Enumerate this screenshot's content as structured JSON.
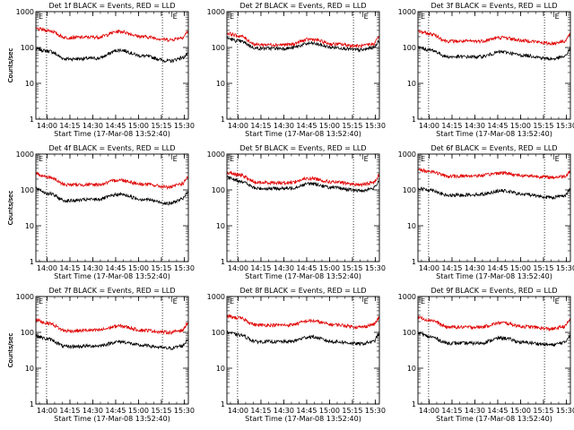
{
  "colors": {
    "events": "#000000",
    "lld": "#e00000",
    "axis": "#000000",
    "background": "#ffffff"
  },
  "chart_data": [
    {
      "type": "line",
      "title": "Det 1f BLACK = Events, RED = LLD",
      "xlabel": "Start Time (17-Mar-08 13:52:40)",
      "ylabel": "Counts/sec",
      "yscale": "log",
      "ylim": [
        1,
        1000
      ],
      "xlim_minutes": [
        0,
        100
      ],
      "xticks": [
        "14:00",
        "14:15",
        "14:30",
        "14:45",
        "15:00",
        "15:15",
        "15:30"
      ],
      "yticks": [
        "1",
        "10",
        "100",
        "1000"
      ],
      "markers": [
        {
          "label": "E",
          "minute": 0
        },
        {
          "label": "E",
          "minute": 88
        }
      ],
      "dotted_x_minutes": [
        7,
        83
      ],
      "series": [
        {
          "name": "Events",
          "color": "#000000",
          "keypoints": [
            [
              0,
              90
            ],
            [
              8,
              80
            ],
            [
              20,
              48
            ],
            [
              40,
              50
            ],
            [
              55,
              85
            ],
            [
              70,
              58
            ],
            [
              88,
              42
            ],
            [
              96,
              52
            ],
            [
              100,
              65
            ]
          ]
        },
        {
          "name": "LLD",
          "color": "#e00000",
          "keypoints": [
            [
              0,
              330
            ],
            [
              8,
              300
            ],
            [
              20,
              190
            ],
            [
              40,
              195
            ],
            [
              55,
              280
            ],
            [
              70,
              200
            ],
            [
              88,
              165
            ],
            [
              96,
              190
            ],
            [
              100,
              280
            ]
          ]
        }
      ]
    },
    {
      "type": "line",
      "title": "Det 2f BLACK = Events, RED = LLD",
      "xlabel": "Start Time (17-Mar-08 13:52:40)",
      "ylabel": "Counts/sec",
      "yscale": "log",
      "ylim": [
        1,
        1000
      ],
      "xlim_minutes": [
        0,
        100
      ],
      "xticks": [
        "14:00",
        "14:15",
        "14:30",
        "14:45",
        "15:00",
        "15:15",
        "15:30"
      ],
      "yticks": [
        "1",
        "10",
        "100",
        "1000"
      ],
      "markers": [
        {
          "label": "E",
          "minute": 0
        },
        {
          "label": "E",
          "minute": 88
        }
      ],
      "dotted_x_minutes": [
        7,
        83
      ],
      "series": [
        {
          "name": "Events",
          "color": "#000000",
          "keypoints": [
            [
              0,
              180
            ],
            [
              8,
              150
            ],
            [
              20,
              95
            ],
            [
              40,
              95
            ],
            [
              55,
              130
            ],
            [
              70,
              100
            ],
            [
              88,
              85
            ],
            [
              96,
              100
            ],
            [
              100,
              150
            ]
          ]
        },
        {
          "name": "LLD",
          "color": "#e00000",
          "keypoints": [
            [
              0,
              250
            ],
            [
              8,
              210
            ],
            [
              20,
              120
            ],
            [
              40,
              120
            ],
            [
              55,
              170
            ],
            [
              70,
              125
            ],
            [
              88,
              110
            ],
            [
              96,
              125
            ],
            [
              100,
              200
            ]
          ]
        }
      ]
    },
    {
      "type": "line",
      "title": "Det 3f BLACK = Events, RED = LLD",
      "xlabel": "Start Time (17-Mar-08 13:52:40)",
      "ylabel": "Counts/sec",
      "yscale": "log",
      "ylim": [
        1,
        1000
      ],
      "xlim_minutes": [
        0,
        100
      ],
      "xticks": [
        "14:00",
        "14:15",
        "14:30",
        "14:45",
        "15:00",
        "15:15",
        "15:30"
      ],
      "yticks": [
        "1",
        "10",
        "100",
        "1000"
      ],
      "markers": [
        {
          "label": "E",
          "minute": 0
        },
        {
          "label": "E",
          "minute": 88
        }
      ],
      "dotted_x_minutes": [
        7,
        83
      ],
      "series": [
        {
          "name": "Events",
          "color": "#000000",
          "keypoints": [
            [
              0,
              100
            ],
            [
              8,
              85
            ],
            [
              20,
              55
            ],
            [
              40,
              55
            ],
            [
              55,
              75
            ],
            [
              70,
              60
            ],
            [
              88,
              48
            ],
            [
              96,
              55
            ],
            [
              100,
              90
            ]
          ]
        },
        {
          "name": "LLD",
          "color": "#e00000",
          "keypoints": [
            [
              0,
              280
            ],
            [
              8,
              240
            ],
            [
              20,
              150
            ],
            [
              40,
              150
            ],
            [
              55,
              190
            ],
            [
              70,
              155
            ],
            [
              88,
              130
            ],
            [
              96,
              150
            ],
            [
              100,
              230
            ]
          ]
        }
      ]
    },
    {
      "type": "line",
      "title": "Det 4f BLACK = Events, RED = LLD",
      "xlabel": "Start Time (17-Mar-08 13:52:40)",
      "ylabel": "Counts/sec",
      "yscale": "log",
      "ylim": [
        1,
        1000
      ],
      "xlim_minutes": [
        0,
        100
      ],
      "xticks": [
        "14:00",
        "14:15",
        "14:30",
        "14:45",
        "15:00",
        "15:15",
        "15:30"
      ],
      "yticks": [
        "1",
        "10",
        "100",
        "1000"
      ],
      "markers": [
        {
          "label": "E",
          "minute": 0
        },
        {
          "label": "E",
          "minute": 88
        }
      ],
      "dotted_x_minutes": [
        7,
        83
      ],
      "series": [
        {
          "name": "Events",
          "color": "#000000",
          "keypoints": [
            [
              0,
              110
            ],
            [
              8,
              80
            ],
            [
              20,
              50
            ],
            [
              40,
              55
            ],
            [
              55,
              75
            ],
            [
              70,
              55
            ],
            [
              88,
              42
            ],
            [
              96,
              55
            ],
            [
              100,
              90
            ]
          ]
        },
        {
          "name": "LLD",
          "color": "#e00000",
          "keypoints": [
            [
              0,
              280
            ],
            [
              8,
              230
            ],
            [
              20,
              140
            ],
            [
              40,
              140
            ],
            [
              55,
              190
            ],
            [
              70,
              145
            ],
            [
              88,
              120
            ],
            [
              96,
              150
            ],
            [
              100,
              230
            ]
          ]
        }
      ]
    },
    {
      "type": "line",
      "title": "Det 5f BLACK = Events, RED = LLD",
      "xlabel": "Start Time (17-Mar-08 13:52:40)",
      "ylabel": "Counts/sec",
      "yscale": "log",
      "ylim": [
        1,
        1000
      ],
      "xlim_minutes": [
        0,
        100
      ],
      "xticks": [
        "14:00",
        "14:15",
        "14:30",
        "14:45",
        "15:00",
        "15:15",
        "15:30"
      ],
      "yticks": [
        "1",
        "10",
        "100",
        "1000"
      ],
      "markers": [
        {
          "label": "E",
          "minute": 0
        },
        {
          "label": "E",
          "minute": 88
        }
      ],
      "dotted_x_minutes": [
        7,
        83
      ],
      "series": [
        {
          "name": "Events",
          "color": "#000000",
          "keypoints": [
            [
              0,
              220
            ],
            [
              8,
              180
            ],
            [
              20,
              110
            ],
            [
              40,
              110
            ],
            [
              55,
              150
            ],
            [
              70,
              115
            ],
            [
              88,
              95
            ],
            [
              96,
              110
            ],
            [
              100,
              180
            ]
          ]
        },
        {
          "name": "LLD",
          "color": "#e00000",
          "keypoints": [
            [
              0,
              300
            ],
            [
              8,
              260
            ],
            [
              20,
              160
            ],
            [
              40,
              160
            ],
            [
              55,
              210
            ],
            [
              70,
              165
            ],
            [
              88,
              140
            ],
            [
              96,
              160
            ],
            [
              100,
              260
            ]
          ]
        }
      ]
    },
    {
      "type": "line",
      "title": "Det 6f BLACK = Events, RED = LLD",
      "xlabel": "Start Time (17-Mar-08 13:52:40)",
      "ylabel": "Counts/sec",
      "yscale": "log",
      "ylim": [
        1,
        1000
      ],
      "xlim_minutes": [
        0,
        100
      ],
      "xticks": [
        "14:00",
        "14:15",
        "14:30",
        "14:45",
        "15:00",
        "15:15",
        "15:30"
      ],
      "yticks": [
        "1",
        "10",
        "100",
        "1000"
      ],
      "markers": [
        {
          "label": "E",
          "minute": 0
        },
        {
          "label": "E",
          "minute": 88
        }
      ],
      "dotted_x_minutes": [
        7,
        83
      ],
      "series": [
        {
          "name": "Events",
          "color": "#000000",
          "keypoints": [
            [
              0,
              110
            ],
            [
              8,
              100
            ],
            [
              20,
              70
            ],
            [
              40,
              75
            ],
            [
              55,
              95
            ],
            [
              70,
              75
            ],
            [
              88,
              62
            ],
            [
              96,
              70
            ],
            [
              100,
              100
            ]
          ]
        },
        {
          "name": "LLD",
          "color": "#e00000",
          "keypoints": [
            [
              0,
              360
            ],
            [
              8,
              330
            ],
            [
              20,
              240
            ],
            [
              40,
              250
            ],
            [
              55,
              300
            ],
            [
              70,
              250
            ],
            [
              88,
              225
            ],
            [
              96,
              240
            ],
            [
              100,
              330
            ]
          ]
        }
      ]
    },
    {
      "type": "line",
      "title": "Det 7f BLACK = Events, RED = LLD",
      "xlabel": "Start Time (17-Mar-08 13:52:40)",
      "ylabel": "Counts/sec",
      "yscale": "log",
      "ylim": [
        1,
        1000
      ],
      "xlim_minutes": [
        0,
        100
      ],
      "xticks": [
        "14:00",
        "14:15",
        "14:30",
        "14:45",
        "15:00",
        "15:15",
        "15:30"
      ],
      "yticks": [
        "1",
        "10",
        "100",
        "1000"
      ],
      "markers": [
        {
          "label": "E",
          "minute": 0
        },
        {
          "label": "E",
          "minute": 88
        }
      ],
      "dotted_x_minutes": [
        7,
        83
      ],
      "series": [
        {
          "name": "Events",
          "color": "#000000",
          "keypoints": [
            [
              0,
              80
            ],
            [
              8,
              65
            ],
            [
              20,
              40
            ],
            [
              40,
              42
            ],
            [
              55,
              55
            ],
            [
              70,
              43
            ],
            [
              88,
              36
            ],
            [
              96,
              42
            ],
            [
              100,
              65
            ]
          ]
        },
        {
          "name": "LLD",
          "color": "#e00000",
          "keypoints": [
            [
              0,
              220
            ],
            [
              8,
              180
            ],
            [
              20,
              110
            ],
            [
              40,
              115
            ],
            [
              55,
              150
            ],
            [
              70,
              115
            ],
            [
              88,
              100
            ],
            [
              96,
              115
            ],
            [
              100,
              190
            ]
          ]
        }
      ]
    },
    {
      "type": "line",
      "title": "Det 8f BLACK = Events, RED = LLD",
      "xlabel": "Start Time (17-Mar-08 13:52:40)",
      "ylabel": "Counts/sec",
      "yscale": "log",
      "ylim": [
        1,
        1000
      ],
      "xlim_minutes": [
        0,
        100
      ],
      "xticks": [
        "14:00",
        "14:15",
        "14:30",
        "14:45",
        "15:00",
        "15:15",
        "15:30"
      ],
      "yticks": [
        "1",
        "10",
        "100",
        "1000"
      ],
      "markers": [
        {
          "label": "E",
          "minute": 0
        },
        {
          "label": "E",
          "minute": 88
        }
      ],
      "dotted_x_minutes": [
        7,
        83
      ],
      "series": [
        {
          "name": "Events",
          "color": "#000000",
          "keypoints": [
            [
              0,
              100
            ],
            [
              8,
              85
            ],
            [
              20,
              55
            ],
            [
              40,
              55
            ],
            [
              55,
              75
            ],
            [
              70,
              55
            ],
            [
              88,
              48
            ],
            [
              96,
              55
            ],
            [
              100,
              90
            ]
          ]
        },
        {
          "name": "LLD",
          "color": "#e00000",
          "keypoints": [
            [
              0,
              280
            ],
            [
              8,
              250
            ],
            [
              20,
              160
            ],
            [
              40,
              160
            ],
            [
              55,
              210
            ],
            [
              70,
              165
            ],
            [
              88,
              140
            ],
            [
              96,
              165
            ],
            [
              100,
              250
            ]
          ]
        }
      ]
    },
    {
      "type": "line",
      "title": "Det 9f BLACK = Events, RED = LLD",
      "xlabel": "Start Time (17-Mar-08 13:52:40)",
      "ylabel": "Counts/sec",
      "yscale": "log",
      "ylim": [
        1,
        1000
      ],
      "xlim_minutes": [
        0,
        100
      ],
      "xticks": [
        "14:00",
        "14:15",
        "14:30",
        "14:45",
        "15:00",
        "15:15",
        "15:30"
      ],
      "yticks": [
        "1",
        "10",
        "100",
        "1000"
      ],
      "markers": [
        {
          "label": "E",
          "minute": 0
        },
        {
          "label": "E",
          "minute": 88
        }
      ],
      "dotted_x_minutes": [
        7,
        83
      ],
      "series": [
        {
          "name": "Events",
          "color": "#000000",
          "keypoints": [
            [
              0,
              95
            ],
            [
              8,
              75
            ],
            [
              20,
              50
            ],
            [
              40,
              50
            ],
            [
              55,
              70
            ],
            [
              70,
              52
            ],
            [
              88,
              45
            ],
            [
              96,
              52
            ],
            [
              100,
              85
            ]
          ]
        },
        {
          "name": "LLD",
          "color": "#e00000",
          "keypoints": [
            [
              0,
              260
            ],
            [
              8,
              220
            ],
            [
              20,
              140
            ],
            [
              40,
              140
            ],
            [
              55,
              185
            ],
            [
              70,
              145
            ],
            [
              88,
              125
            ],
            [
              96,
              145
            ],
            [
              100,
              230
            ]
          ]
        }
      ]
    }
  ]
}
